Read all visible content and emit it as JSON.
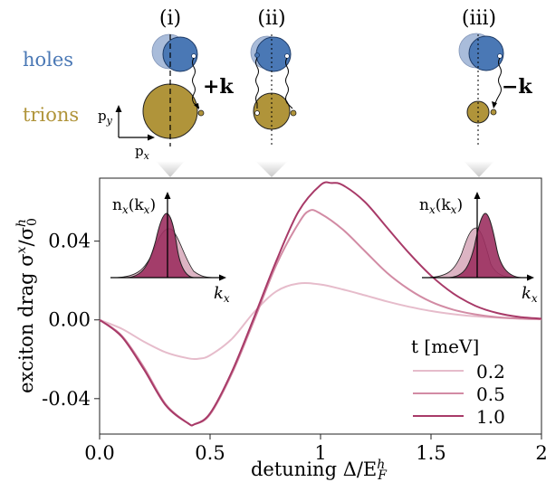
{
  "schematic": {
    "row_labels": {
      "holes": "holes",
      "trions": "trions"
    },
    "row_colors": {
      "holes": "#4a78b5",
      "trions": "#b0943a"
    },
    "panels": [
      {
        "id": "i",
        "label": "(i)",
        "momentum_label": "+k"
      },
      {
        "id": "ii",
        "label": "(ii)",
        "momentum_label": ""
      },
      {
        "id": "iii",
        "label": "(iii)",
        "momentum_label": "−k"
      }
    ],
    "axis_labels": {
      "py": "p",
      "py_sub": "y",
      "px": "p",
      "px_sub": "x"
    }
  },
  "chart_data": {
    "type": "line",
    "xlabel": "detuning Δ/E",
    "xlabel_sup": "h",
    "xlabel_sub": "F",
    "ylabel": "exciton drag  σ",
    "ylabel_sup1": "x",
    "ylabel_mid": "/σ",
    "ylabel_sup2": "h",
    "ylabel_sub2": "0",
    "xlim": [
      0,
      2
    ],
    "ylim": [
      -0.058,
      0.072
    ],
    "xticks": [
      0,
      0.5,
      1,
      1.5,
      2
    ],
    "xtick_labels": [
      "0.0",
      "0.5",
      "1",
      "1.5",
      "2"
    ],
    "yticks": [
      -0.04,
      0,
      0.04
    ],
    "ytick_labels": [
      "-0.04",
      "0.00",
      "0.04"
    ],
    "grid": false,
    "legend": {
      "title": "t [meV]",
      "placement": "bottom-right"
    },
    "series": [
      {
        "name": "0.2",
        "color": "#e6bccb",
        "x": [
          0,
          0.1,
          0.2,
          0.3,
          0.4,
          0.45,
          0.5,
          0.6,
          0.7,
          0.8,
          0.9,
          1.0,
          1.1,
          1.2,
          1.3,
          1.4,
          1.5,
          1.6,
          1.7,
          1.8,
          1.9,
          2.0
        ],
        "y": [
          0,
          -0.0045,
          -0.011,
          -0.0165,
          -0.0195,
          -0.0197,
          -0.018,
          -0.0095,
          0.004,
          0.0145,
          0.0185,
          0.018,
          0.0155,
          0.0125,
          0.0094,
          0.0067,
          0.0045,
          0.0029,
          0.0018,
          0.0011,
          0.0006,
          0.0003
        ]
      },
      {
        "name": "0.5",
        "color": "#d28ba4",
        "x": [
          0,
          0.1,
          0.2,
          0.3,
          0.4,
          0.43,
          0.5,
          0.6,
          0.7,
          0.8,
          0.9,
          0.95,
          1.0,
          1.1,
          1.2,
          1.3,
          1.4,
          1.5,
          1.6,
          1.7,
          1.8,
          1.9,
          2.0
        ],
        "y": [
          0,
          -0.008,
          -0.024,
          -0.043,
          -0.0525,
          -0.053,
          -0.048,
          -0.027,
          0.0,
          0.028,
          0.049,
          0.0555,
          0.054,
          0.046,
          0.035,
          0.024,
          0.0155,
          0.0092,
          0.0052,
          0.0028,
          0.0014,
          0.0007,
          0.0003
        ]
      },
      {
        "name": "1.0",
        "color": "#a83a68",
        "x": [
          0,
          0.1,
          0.2,
          0.3,
          0.4,
          0.43,
          0.5,
          0.6,
          0.7,
          0.8,
          0.9,
          1.0,
          1.05,
          1.1,
          1.2,
          1.3,
          1.4,
          1.5,
          1.6,
          1.7,
          1.8,
          1.9,
          2.0
        ],
        "y": [
          0,
          -0.0085,
          -0.025,
          -0.0435,
          -0.0525,
          -0.053,
          -0.0475,
          -0.026,
          0.0015,
          0.03,
          0.055,
          0.0685,
          0.0695,
          0.0685,
          0.06,
          0.047,
          0.034,
          0.0225,
          0.0135,
          0.0072,
          0.0035,
          0.0015,
          0.0006
        ]
      }
    ],
    "insets": [
      {
        "id": "left",
        "ylabel": "n",
        "ylabel_sub": "x",
        "ylabel_arg": "(k",
        "ylabel_arg_sub": "x",
        "ylabel_close": ")",
        "xlabel": "k",
        "xlabel_sub": "x"
      },
      {
        "id": "right",
        "ylabel": "n",
        "ylabel_sub": "x",
        "ylabel_arg": "(k",
        "ylabel_arg_sub": "x",
        "ylabel_close": ")",
        "xlabel": "k",
        "xlabel_sub": "x"
      }
    ]
  }
}
